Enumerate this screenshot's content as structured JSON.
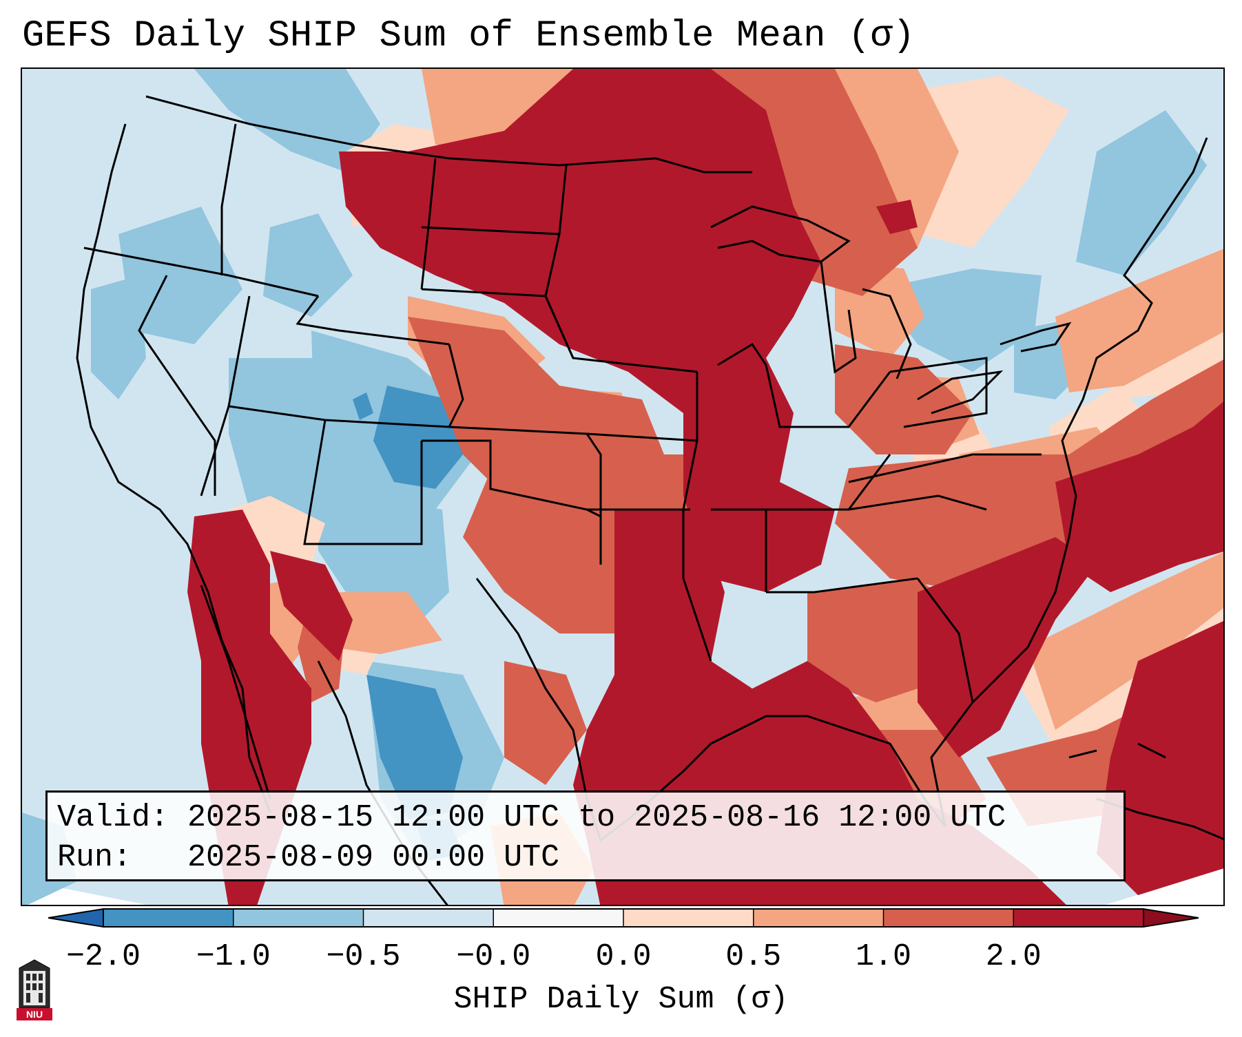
{
  "title": "GEFS Daily SHIP Sum of Ensemble Mean (σ)",
  "info": {
    "valid_label": "Valid:",
    "valid_value": "2025-08-15 12:00 UTC to 2025-08-16 12:00 UTC",
    "run_label": "Run:",
    "run_value": "2025-08-09 00:00 UTC"
  },
  "colorbar": {
    "label": "SHIP Daily Sum (σ)",
    "ticks": [
      "−2.0",
      "−1.0",
      "−0.5",
      "−0.0",
      "0.0",
      "0.5",
      "1.0",
      "2.0"
    ],
    "colors": [
      "#4393c3",
      "#92c5de",
      "#d1e5f0",
      "#f7f7f7",
      "#fddbc7",
      "#f4a582",
      "#d6604d",
      "#b2182b"
    ],
    "under_color": "#2166ac",
    "over_color": "#8b0d1e"
  },
  "logo": {
    "text": "NIU",
    "icon": "niu-tower-logo-icon"
  }
}
